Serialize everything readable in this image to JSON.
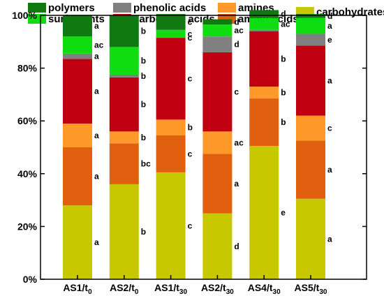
{
  "chart_data": {
    "type": "bar",
    "stacked": true,
    "title": "",
    "xlabel": "",
    "ylabel": "",
    "ylim": [
      0,
      100
    ],
    "yticks": [
      0,
      20,
      40,
      60,
      80,
      100
    ],
    "ytick_labels": [
      "0%",
      "20%",
      "40%",
      "60%",
      "80%",
      "100%"
    ],
    "legend_position": "top",
    "categories": [
      {
        "main": "AS1/t",
        "sub": "0"
      },
      {
        "main": "AS2/t",
        "sub": "0"
      },
      {
        "main": "AS1/t",
        "sub": "30"
      },
      {
        "main": "AS2/t",
        "sub": "30"
      },
      {
        "main": "AS4/t",
        "sub": "30"
      },
      {
        "main": "AS5/t",
        "sub": "30"
      }
    ],
    "series": [
      {
        "name": "carbohydrates",
        "color": "#c8c800",
        "values": [
          28,
          36,
          40.5,
          25,
          50.5,
          30.5
        ],
        "labels": [
          "a",
          "b",
          "c",
          "d",
          "e",
          "a"
        ]
      },
      {
        "name": "amino acids",
        "color": "#e06010",
        "values": [
          22,
          15.5,
          14,
          22.5,
          18,
          22
        ],
        "labels": [
          "a",
          "bc",
          "c",
          "a",
          "b",
          "a"
        ]
      },
      {
        "name": "amines",
        "color": "#ff9a2a",
        "values": [
          9,
          4.5,
          6,
          8.5,
          4.5,
          9.5
        ],
        "labels": [
          "a",
          "b",
          "b",
          "ac",
          "b",
          "c"
        ]
      },
      {
        "name": "carboxylic acids",
        "color": "#c00010",
        "values": [
          24.5,
          20.5,
          31,
          30,
          21,
          26.5
        ],
        "labels": [
          "a",
          "b",
          "c",
          "c",
          "b",
          "a"
        ]
      },
      {
        "name": "phenolic acids",
        "color": "#808080",
        "values": [
          2,
          1,
          0,
          6,
          0.5,
          4.5
        ],
        "labels": [
          "a",
          "b",
          "c",
          "d",
          "",
          "e"
        ]
      },
      {
        "name": "surfactants",
        "color": "#10dd10",
        "values": [
          6.5,
          10.5,
          3,
          4.5,
          4.5,
          6
        ],
        "labels": [
          "ac",
          "b",
          "c",
          "ac",
          "ac",
          "a"
        ]
      },
      {
        "name": "polymers",
        "color": "#107a10",
        "values": [
          8,
          12,
          6,
          2,
          3,
          1.5
        ],
        "labels": [
          "a",
          "b",
          "c",
          "d",
          "d",
          "d"
        ]
      }
    ]
  }
}
